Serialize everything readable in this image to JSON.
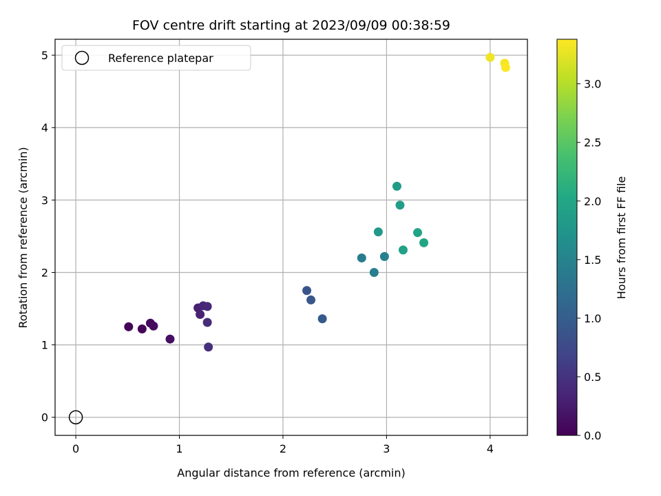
{
  "chart_data": {
    "type": "scatter",
    "title": "FOV centre drift starting at 2023/09/09 00:38:59",
    "xlabel": "Angular distance from reference (arcmin)",
    "ylabel": "Rotation from reference (arcmin)",
    "xlim": [
      -0.2,
      4.36
    ],
    "ylim": [
      -0.25,
      5.22
    ],
    "xticks": [
      0,
      1,
      2,
      3,
      4
    ],
    "yticks": [
      0,
      1,
      2,
      3,
      4,
      5
    ],
    "grid": true,
    "colorscale": "viridis",
    "colorbar": {
      "label": "Hours from first FF file",
      "range": [
        0.0,
        3.38
      ],
      "ticks": [
        "0.0",
        "0.5",
        "1.0",
        "1.5",
        "2.0",
        "2.5",
        "3.0"
      ]
    },
    "legend": {
      "position": "top-left",
      "entries": [
        {
          "label": "Reference platepar",
          "marker": "hollow-circle"
        }
      ]
    },
    "reference_point": {
      "x": 0,
      "y": 0
    },
    "points": [
      {
        "x": 0.51,
        "y": 1.25,
        "hours": 0.02
      },
      {
        "x": 0.64,
        "y": 1.22,
        "hours": 0.05
      },
      {
        "x": 0.72,
        "y": 1.3,
        "hours": 0.08
      },
      {
        "x": 0.75,
        "y": 1.26,
        "hours": 0.1
      },
      {
        "x": 0.91,
        "y": 1.08,
        "hours": 0.14
      },
      {
        "x": 1.18,
        "y": 1.51,
        "hours": 0.3
      },
      {
        "x": 1.2,
        "y": 1.42,
        "hours": 0.33
      },
      {
        "x": 1.23,
        "y": 1.54,
        "hours": 0.36
      },
      {
        "x": 1.27,
        "y": 1.53,
        "hours": 0.39
      },
      {
        "x": 1.27,
        "y": 1.31,
        "hours": 0.42
      },
      {
        "x": 1.28,
        "y": 0.97,
        "hours": 0.45
      },
      {
        "x": 2.23,
        "y": 1.75,
        "hours": 0.88
      },
      {
        "x": 2.27,
        "y": 1.62,
        "hours": 0.91
      },
      {
        "x": 2.38,
        "y": 1.36,
        "hours": 0.95
      },
      {
        "x": 2.76,
        "y": 2.2,
        "hours": 1.4
      },
      {
        "x": 2.88,
        "y": 2.0,
        "hours": 1.43
      },
      {
        "x": 2.98,
        "y": 2.22,
        "hours": 1.46
      },
      {
        "x": 2.92,
        "y": 2.56,
        "hours": 1.8
      },
      {
        "x": 3.1,
        "y": 3.19,
        "hours": 1.84
      },
      {
        "x": 3.13,
        "y": 2.93,
        "hours": 1.88
      },
      {
        "x": 3.16,
        "y": 2.31,
        "hours": 1.92
      },
      {
        "x": 3.3,
        "y": 2.55,
        "hours": 1.95
      },
      {
        "x": 3.36,
        "y": 2.41,
        "hours": 1.98
      },
      {
        "x": 4.0,
        "y": 4.97,
        "hours": 3.3
      },
      {
        "x": 4.14,
        "y": 4.89,
        "hours": 3.34
      },
      {
        "x": 4.15,
        "y": 4.83,
        "hours": 3.38
      }
    ]
  }
}
